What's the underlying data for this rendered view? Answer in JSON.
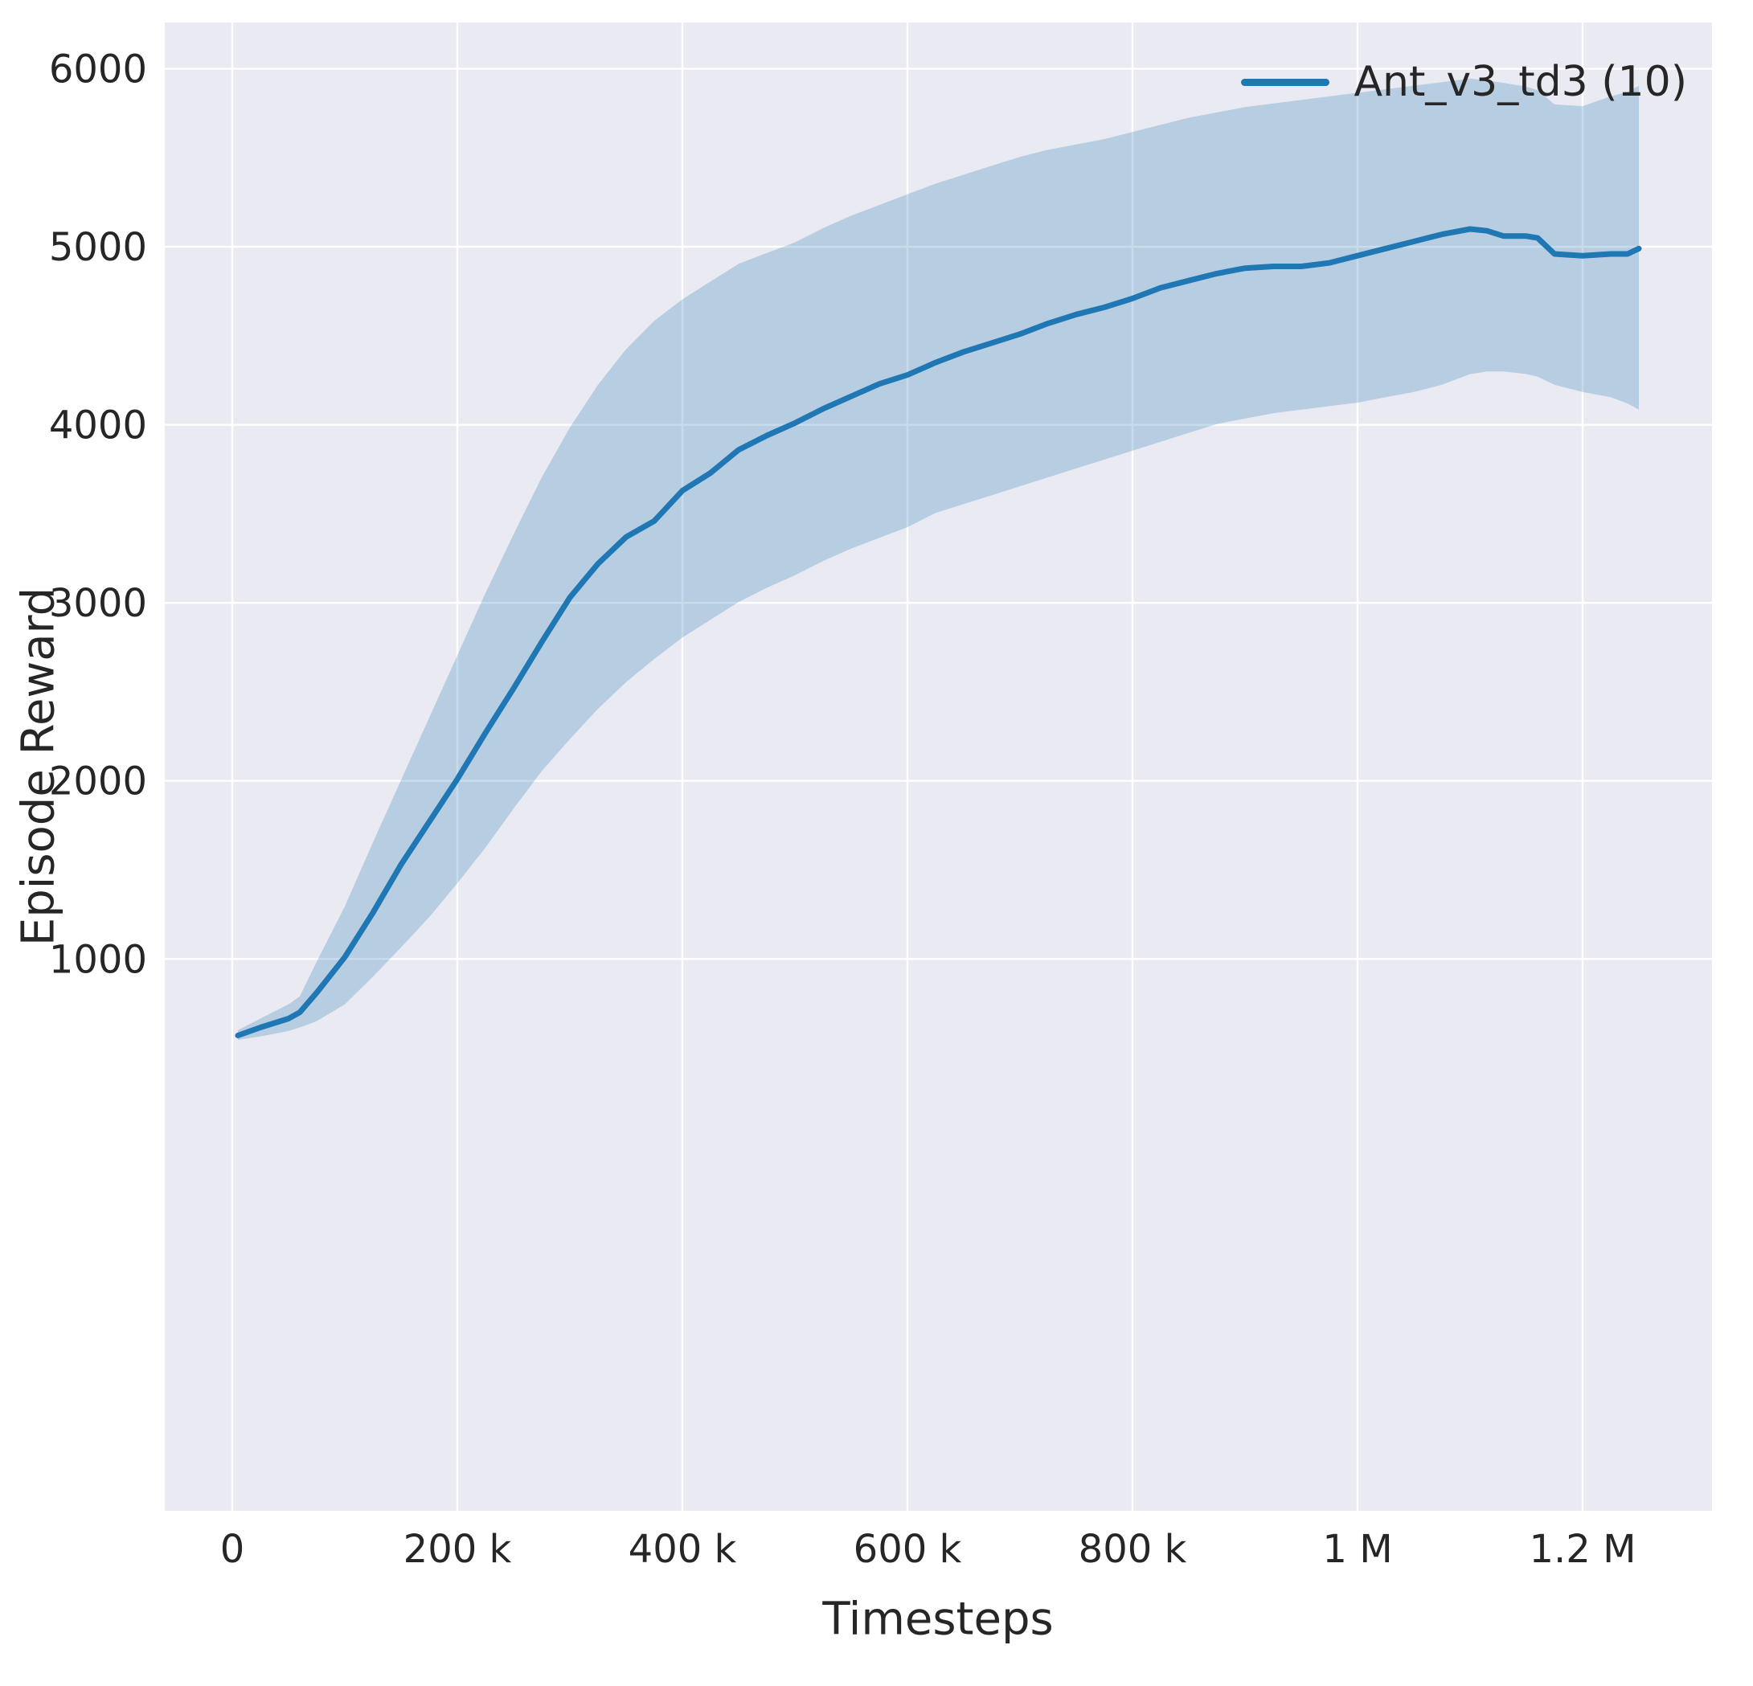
{
  "figure": {
    "background": "#ffffff",
    "axes_background": "#eaeaf2",
    "grid_color": "#ffffff",
    "text_color": "#262626"
  },
  "chart_data": {
    "type": "line",
    "title": "",
    "xlabel": "Timesteps",
    "ylabel": "Episode Reward",
    "xlim": [
      -60000,
      1315000
    ],
    "ylim": [
      -2100,
      6260
    ],
    "grid": true,
    "legend_position": "upper right",
    "x_ticks": [
      0,
      200000,
      400000,
      600000,
      800000,
      1000000,
      1200000
    ],
    "x_tick_labels": [
      "0",
      "200 k",
      "400 k",
      "600 k",
      "800 k",
      "1 M",
      "1.2 M"
    ],
    "y_ticks": [
      1000,
      2000,
      3000,
      4000,
      5000,
      6000
    ],
    "y_tick_labels": [
      "1000",
      "2000",
      "3000",
      "4000",
      "5000",
      "6000"
    ],
    "series": [
      {
        "name": "Ant_v3_td3 (10)",
        "color": "#1f77b4",
        "band_color": "#1f77b4",
        "band_opacity": 0.25,
        "x": [
          5000,
          25000,
          50000,
          60000,
          75000,
          100000,
          125000,
          150000,
          175000,
          200000,
          225000,
          250000,
          275000,
          300000,
          325000,
          350000,
          375000,
          400000,
          425000,
          450000,
          475000,
          500000,
          525000,
          550000,
          575000,
          600000,
          625000,
          650000,
          675000,
          700000,
          725000,
          750000,
          775000,
          800000,
          825000,
          850000,
          875000,
          900000,
          925000,
          950000,
          975000,
          1000000,
          1025000,
          1050000,
          1075000,
          1100000,
          1115000,
          1130000,
          1150000,
          1160000,
          1175000,
          1200000,
          1225000,
          1240000,
          1250000
        ],
        "mean": [
          570,
          615,
          665,
          700,
          810,
          1010,
          1260,
          1530,
          1770,
          2010,
          2270,
          2520,
          2780,
          3030,
          3220,
          3370,
          3460,
          3630,
          3730,
          3860,
          3940,
          4010,
          4090,
          4160,
          4230,
          4280,
          4350,
          4410,
          4460,
          4510,
          4570,
          4620,
          4660,
          4710,
          4770,
          4810,
          4850,
          4880,
          4890,
          4890,
          4910,
          4950,
          4990,
          5030,
          5070,
          5100,
          5090,
          5060,
          5060,
          5050,
          4960,
          4950,
          4960,
          4960,
          4990
        ],
        "lower": [
          545,
          565,
          595,
          615,
          650,
          745,
          900,
          1065,
          1235,
          1425,
          1625,
          1845,
          2055,
          2235,
          2405,
          2555,
          2685,
          2805,
          2905,
          3005,
          3085,
          3155,
          3235,
          3305,
          3365,
          3425,
          3505,
          3555,
          3605,
          3655,
          3705,
          3755,
          3805,
          3855,
          3905,
          3955,
          4005,
          4035,
          4065,
          4085,
          4105,
          4125,
          4155,
          4185,
          4225,
          4285,
          4300,
          4300,
          4285,
          4270,
          4225,
          4185,
          4155,
          4120,
          4085
        ],
        "upper": [
          600,
          665,
          745,
          790,
          985,
          1295,
          1655,
          2005,
          2355,
          2705,
          3055,
          3385,
          3705,
          3985,
          4225,
          4425,
          4585,
          4705,
          4805,
          4905,
          4965,
          5025,
          5105,
          5175,
          5235,
          5295,
          5355,
          5405,
          5455,
          5505,
          5545,
          5575,
          5605,
          5645,
          5685,
          5725,
          5755,
          5785,
          5805,
          5825,
          5845,
          5865,
          5885,
          5905,
          5925,
          5945,
          5935,
          5920,
          5900,
          5880,
          5800,
          5790,
          5845,
          5870,
          5905
        ]
      }
    ]
  }
}
